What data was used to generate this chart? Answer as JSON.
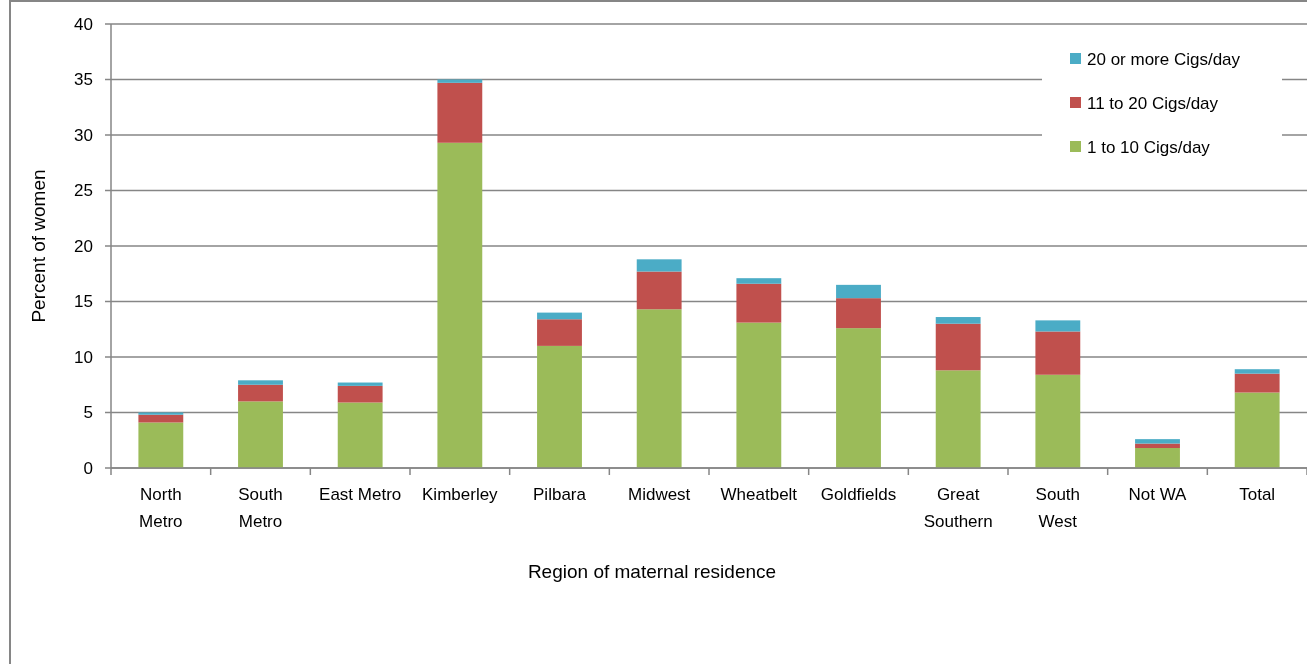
{
  "chart_data": {
    "type": "bar",
    "stacked": true,
    "xlabel": "Region of maternal residence",
    "ylabel": "Percent of women",
    "categories": [
      "North Metro",
      "South Metro",
      "East Metro",
      "Kimberley",
      "Pilbara",
      "Midwest",
      "Wheatbelt",
      "Goldfields",
      "Great Southern",
      "South West",
      "Not WA",
      "Total"
    ],
    "series": [
      {
        "name": "1 to 10 Cigs/day",
        "color": "#9bbb59",
        "values": [
          4.1,
          6.0,
          5.9,
          29.3,
          11.0,
          14.3,
          13.1,
          12.6,
          8.8,
          8.4,
          1.8,
          6.8
        ]
      },
      {
        "name": "11 to 20 Cigs/day",
        "color": "#c0504d",
        "values": [
          0.7,
          1.5,
          1.5,
          5.4,
          2.4,
          3.4,
          3.5,
          2.7,
          4.2,
          3.9,
          0.4,
          1.7
        ]
      },
      {
        "name": "20 or more Cigs/day",
        "color": "#4bacc6",
        "values": [
          0.2,
          0.4,
          0.3,
          0.3,
          0.6,
          1.1,
          0.5,
          1.2,
          0.6,
          1.0,
          0.4,
          0.4
        ]
      }
    ],
    "ylim": [
      0,
      40
    ],
    "yticks": [
      0,
      5,
      10,
      15,
      20,
      25,
      30,
      35,
      40
    ],
    "grid": "y",
    "legend": "top right"
  }
}
